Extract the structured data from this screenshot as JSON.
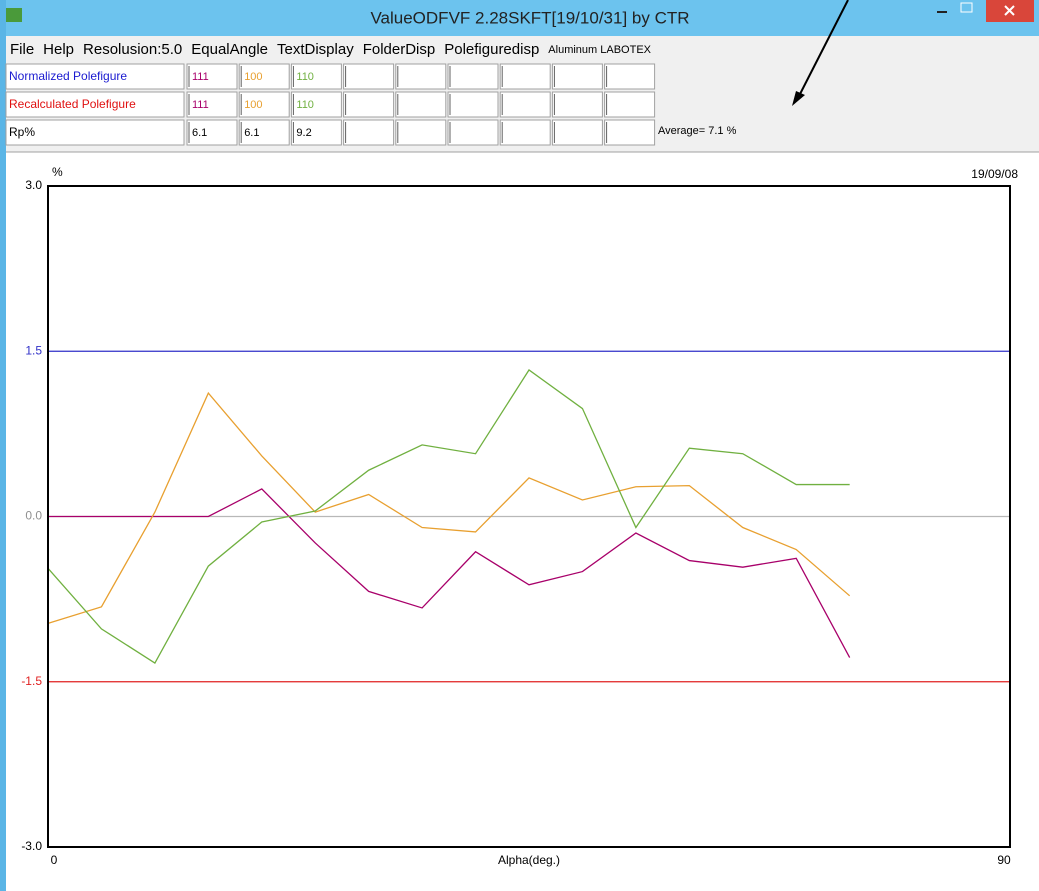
{
  "window": {
    "title": "ValueODFVF 2.28SKFT[19/10/31] by CTR"
  },
  "menu": [
    "File",
    "Help",
    "Resolusion:5.0",
    "EqualAngle",
    "TextDisplay",
    "FolderDisp",
    "Polefiguredisp"
  ],
  "menu_note": "Aluminum LABOTEX",
  "table": {
    "rows": [
      {
        "label": "Normalized Polefigure"
      },
      {
        "label": "Recalculated Polefigure",
        "cells": [
          "111",
          "100",
          "110"
        ]
      },
      {
        "label": "Rp%",
        "cells": [
          "6.1",
          "6.1",
          "9.2"
        ]
      }
    ],
    "average": "Average= 7.1 %"
  },
  "chart_data": {
    "type": "line",
    "ylabel": "%",
    "xlabel": "Alpha(deg.)",
    "date": "19/09/08",
    "x": [
      0,
      5,
      10,
      15,
      20,
      25,
      30,
      35,
      40,
      45,
      50,
      55,
      60,
      65,
      70,
      75
    ],
    "series": [
      {
        "name": "111",
        "color": "#a8006a",
        "values": [
          0,
          0,
          0,
          0,
          0.25,
          -0.24,
          -0.68,
          -0.83,
          -0.32,
          -0.62,
          -0.5,
          -0.15,
          -0.4,
          -0.46,
          -0.38,
          -1.28
        ]
      },
      {
        "name": "100",
        "color": "#e8a030",
        "values": [
          -0.97,
          -0.82,
          0.04,
          1.12,
          0.55,
          0.04,
          0.2,
          -0.1,
          -0.14,
          0.35,
          0.15,
          0.27,
          0.28,
          -0.1,
          -0.3,
          -0.72
        ]
      },
      {
        "name": "110",
        "color": "#70b040",
        "values": [
          -0.47,
          -1.02,
          -1.33,
          -0.45,
          -0.05,
          0.05,
          0.42,
          0.65,
          0.57,
          1.33,
          0.98,
          -0.1,
          0.62,
          0.57,
          0.29,
          0.29
        ]
      }
    ],
    "xlim": [
      0,
      90
    ],
    "xticks": [
      0,
      90
    ],
    "ylim": [
      -3,
      3
    ],
    "yticks": [
      {
        "value": 3,
        "label": "3.0"
      },
      {
        "value": 1.5,
        "label": "1.5"
      },
      {
        "value": 0,
        "label": "0.0"
      },
      {
        "value": -1.5,
        "label": "-1.5"
      },
      {
        "value": -3,
        "label": "-3.0"
      }
    ],
    "reference_lines": [
      {
        "value": 1.5,
        "color": "#3030c8"
      },
      {
        "value": 0,
        "color": "#b8b8b8"
      },
      {
        "value": -1.5,
        "color": "#e02020"
      }
    ]
  }
}
